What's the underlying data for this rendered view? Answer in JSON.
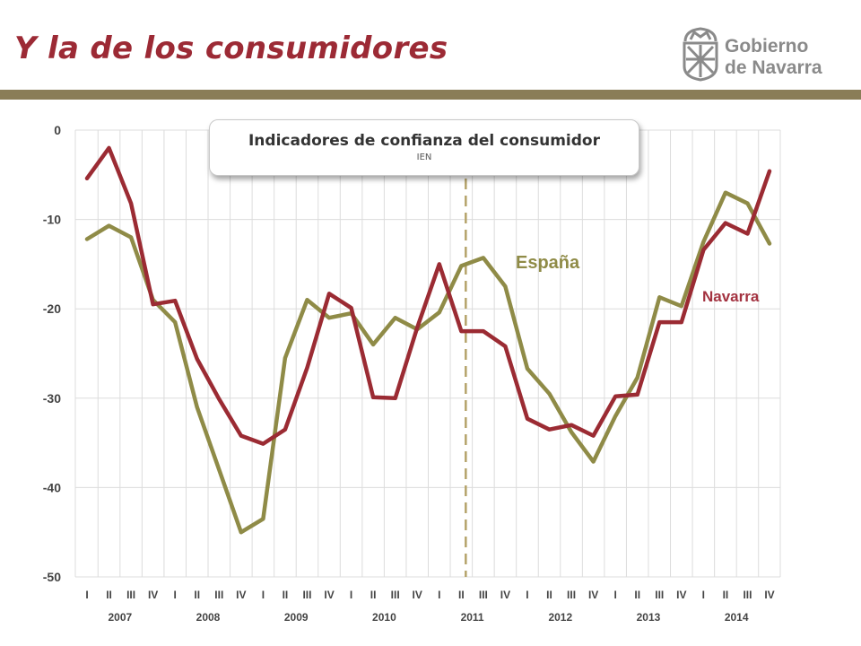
{
  "slide": {
    "title": "Y la de los consumidores",
    "logo": {
      "line1": "Gobierno",
      "line2": "de Navarra",
      "icon": "navarra-coat-of-arms-icon"
    }
  },
  "chart_data": {
    "type": "line",
    "title": "Indicadores de confianza del consumidor",
    "subtitle": "IEN",
    "ylim": [
      -50,
      0
    ],
    "yticks": [
      0,
      -10,
      -20,
      -30,
      -40,
      -50
    ],
    "grid": true,
    "quarters": [
      "I",
      "II",
      "III",
      "IV",
      "I",
      "II",
      "III",
      "IV",
      "I",
      "II",
      "III",
      "IV",
      "I",
      "II",
      "III",
      "IV",
      "I",
      "II",
      "III",
      "IV",
      "I",
      "II",
      "III",
      "IV",
      "I",
      "II",
      "III",
      "IV",
      "I",
      "II",
      "III",
      "IV"
    ],
    "years": [
      "2007",
      "2008",
      "2009",
      "2010",
      "2011",
      "2012",
      "2013",
      "2014"
    ],
    "marker_index": 17,
    "colors": {
      "grid": "#dcdcdc",
      "marker": "#b5a36a",
      "axis_text": "#444444"
    },
    "series": [
      {
        "name": "España",
        "color": "#8f8b47",
        "label_color": "#8f8b47",
        "values": [
          -12.2,
          -10.7,
          -12.0,
          -19.0,
          -21.5,
          -31.0,
          -38.0,
          -45.0,
          -43.5,
          -25.5,
          -19.0,
          -21.0,
          -20.5,
          -24.0,
          -21.0,
          -22.3,
          -20.4,
          -15.2,
          -14.3,
          -17.5,
          -26.7,
          -29.5,
          -33.8,
          -37.1,
          -32.0,
          -27.7,
          -18.7,
          -19.7,
          -12.5,
          -7.0,
          -8.2,
          -12.7
        ]
      },
      {
        "name": "Navarra",
        "color": "#9b2b33",
        "label_color": "#a33240",
        "values": [
          -5.4,
          -2.0,
          -8.2,
          -19.5,
          -19.1,
          -25.6,
          -30.1,
          -34.2,
          -35.1,
          -33.5,
          -26.6,
          -18.3,
          -19.9,
          -29.9,
          -30.0,
          -22.1,
          -15.0,
          -22.5,
          -22.5,
          -24.2,
          -32.3,
          -33.5,
          -33.0,
          -34.2,
          -29.8,
          -29.6,
          -21.5,
          -21.5,
          -13.4,
          -10.4,
          -11.6,
          -4.6
        ]
      }
    ]
  }
}
